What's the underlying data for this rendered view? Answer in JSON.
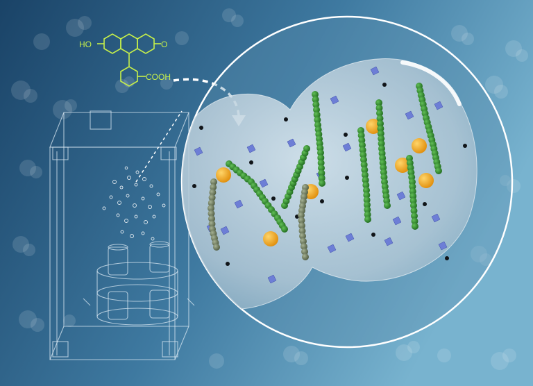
{
  "molecule": {
    "labels": {
      "hydroxyl": "HO",
      "ketone": "O",
      "carboxyl": "COOH"
    },
    "color": "#c7f04a"
  },
  "colors": {
    "background_left": "#1c4669",
    "background_right": "#6aa6c7",
    "bubble_fill": "#c9d9e3",
    "fiber_green": "#2f8a2c",
    "fiber_grey": "#6f7f5f",
    "gold_particle": "#f0a51a",
    "blue_cube": "#6d7ed6",
    "black_dot": "#101418",
    "device_stroke": "#cfe0ec"
  },
  "icons": {
    "device": "glass-chamber-device",
    "arrow": "dashed-curved-arrow",
    "magnifier": "zoom-circle"
  }
}
